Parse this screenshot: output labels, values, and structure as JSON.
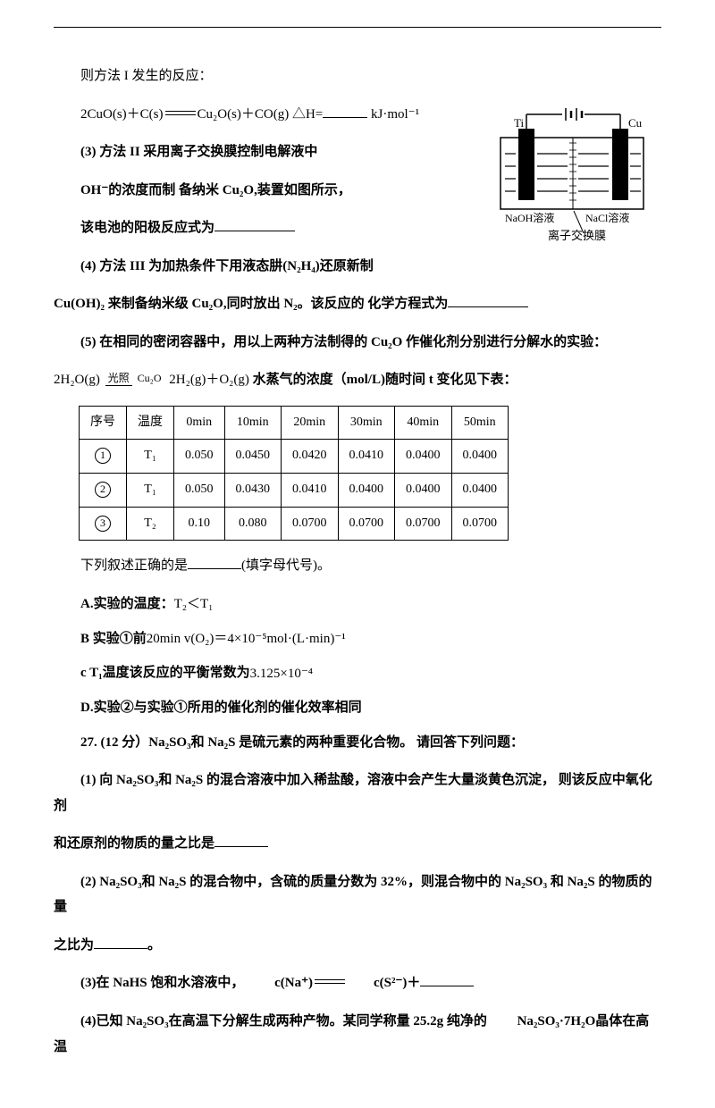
{
  "line1": "则方法 I 发生的反应：",
  "eq1_lhs": "2CuO(s)＋C(s)",
  "eq1_rhs": "Cu₂O(s)＋CO(g) △H=",
  "eq1_unit": "kJ·mol⁻¹",
  "p3": "(3) 方法 II 采用离子交换膜控制电解液中",
  "p3b": "OH⁻的浓度而制  备纳米 Cu₂O,装置如图所示，",
  "p3c": "该电池的阳极反应式为",
  "diagram": {
    "ti": "Ti",
    "cu": "Cu",
    "naoh": "NaOH溶液",
    "nacl": "NaCl溶液",
    "membrane": "离子交换膜"
  },
  "p4": "(4) 方法 III 为加热条件下用液态肼(N₂H₄)还原新制",
  "p4b": " Cu(OH)₂ 来制备纳米级 Cu₂O,同时放出 N₂。该反应的  化学方程式为",
  "p5": "(5) 在相同的密闭容器中，用以上两种方法制得的 Cu₂O 作催化剂分别进行分解水的实验：",
  "eq2_lhs": "2H₂O(g)",
  "eq2_top": "光照",
  "eq2_bot": "Cu₂O",
  "eq2_rhs": "2H₂(g)＋O₂(g)",
  "p5b": "水蒸气的浓度（mol/L)随时间 t 变化见下表：",
  "table": {
    "headers": [
      "序号",
      "温度",
      "0min",
      "10min",
      "20min",
      "30min",
      "40min",
      "50min"
    ],
    "rows": [
      [
        "①",
        "T₁",
        "0.050",
        "0.0450",
        "0.0420",
        "0.0410",
        "0.0400",
        "0.0400"
      ],
      [
        "②",
        "T₁",
        "0.050",
        "0.0430",
        "0.0410",
        "0.0400",
        "0.0400",
        "0.0400"
      ],
      [
        "③",
        "T₂",
        "0.10",
        "0.080",
        "0.0700",
        "0.0700",
        "0.0700",
        "0.0700"
      ]
    ]
  },
  "p6": "下列叙述正确的是",
  "p6b": "(填字母代号)。",
  "optA_pre": "A.实验的温度：",
  "optA_expr": "T₂＜T₁",
  "optB_pre": "B 实验①前",
  "optB_expr": "20min v(O₂)＝4×10⁻⁵mol·(L·min)⁻¹",
  "optC_pre": "c T₁温度该反应的平衡常数为",
  "optC_expr": "3.125×10⁻⁴",
  "optD": "D.实验②与实验①所用的催化剂的催化效率相同",
  "q27": "27. (12 分）Na₂SO₃和 Na₂S 是硫元素的两种重要化合物。  请回答下列问题：",
  "q27_1a": "(1)  向 Na₂SO₃和 Na₂S 的混合溶液中加入稀盐酸，溶液中会产生大量淡黄色沉淀，  则该反应中氧化剂",
  "q27_1b": "和还原剂的物质的量之比是",
  "q27_2a": "(2) Na₂SO₃和 Na₂S 的混合物中，含硫的质量分数为 32%，则混合物中的 Na₂SO₃ 和 Na₂S 的物质的量",
  "q27_2b": "之比为",
  "q27_3a": "(3)在 NaHS 饱和水溶液中，",
  "q27_3expr": "c(Na⁺)",
  "q27_3eq": "c(S²⁻)",
  "q27_3plus": "＋",
  "q27_4a": "(4)已知 Na₂SO₃在高温下分解生成两种产物。某同学称量 25.2g 纯净的 ",
  "q27_4expr": "Na₂SO₃·7H₂O",
  "q27_4b": "晶体在高温"
}
